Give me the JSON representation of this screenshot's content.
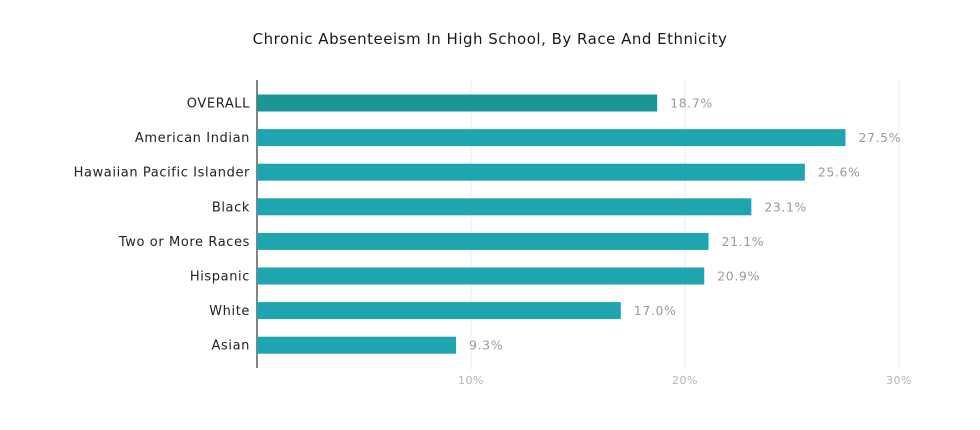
{
  "chart_data": {
    "type": "bar",
    "orientation": "horizontal",
    "title": "Chronic Absenteeism In High School, By Race And Ethnicity",
    "categories": [
      "OVERALL",
      "American Indian",
      "Hawaiian Pacific Islander",
      "Black",
      "Two or More Races",
      "Hispanic",
      "White",
      "Asian"
    ],
    "values": [
      18.7,
      27.5,
      25.6,
      23.1,
      21.1,
      20.9,
      17.0,
      9.3
    ],
    "value_labels": [
      "18.7%",
      "27.5%",
      "25.6%",
      "23.1%",
      "21.1%",
      "20.9%",
      "17.0%",
      "9.3%"
    ],
    "xlim": [
      0,
      30
    ],
    "x_ticks": [
      10,
      20,
      30
    ],
    "x_tick_labels": [
      "10%",
      "20%",
      "30%"
    ],
    "grid": true,
    "colors": {
      "overall_bar": "#1a9696",
      "bar": "#1ea5b0"
    }
  }
}
